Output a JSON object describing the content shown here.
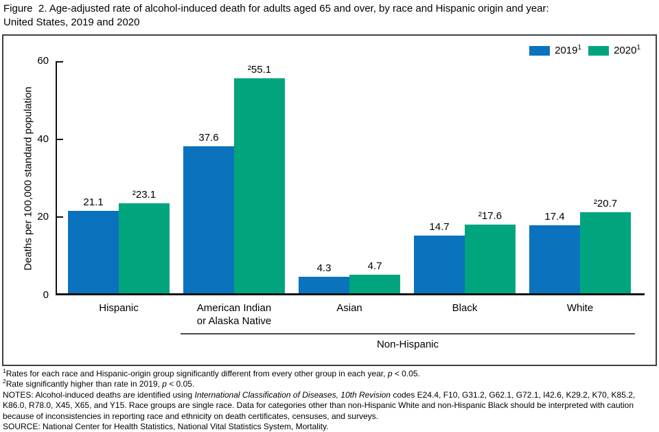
{
  "title": "Figure  2. Age-adjusted rate of alcohol-induced death for adults aged 65 and over, by race and Hispanic origin and year:\nUnited States, 2019 and 2020",
  "chart_data": {
    "type": "bar",
    "title": "Age-adjusted rate of alcohol-induced death for adults aged 65 and over, by race and Hispanic origin and year: United States, 2019 and 2020",
    "ylabel": "Deaths per 100,000 standard population",
    "xlabel": "",
    "ylim": [
      0,
      60
    ],
    "yticks": [
      0,
      20,
      40,
      60
    ],
    "grid": false,
    "legend_position": "top-right",
    "categories": [
      "Hispanic",
      "American Indian\nor Alaska Native",
      "Asian",
      "Black",
      "White"
    ],
    "series": [
      {
        "name": "2019",
        "name_sup": "1",
        "color": "#0B72BE",
        "values": [
          21.1,
          37.6,
          4.3,
          14.7,
          17.4
        ],
        "labels": [
          "21.1",
          "37.6",
          "4.3",
          "14.7",
          "17.4"
        ]
      },
      {
        "name": "2020",
        "name_sup": "1",
        "color": "#00A57E",
        "values": [
          23.1,
          55.1,
          4.7,
          17.6,
          20.7
        ],
        "labels": [
          "²23.1",
          "²55.1",
          "4.7",
          "²17.6",
          "²20.7"
        ]
      }
    ],
    "group_annotation": {
      "label": "Non-Hispanic",
      "covers": [
        "American Indian or Alaska Native",
        "Asian",
        "Black",
        "White"
      ]
    }
  },
  "footnotes": [
    {
      "segments": [
        {
          "t": "1",
          "style": "sup"
        },
        {
          "t": "Rates for each race and Hispanic-origin group significantly different from every other group in each year, "
        },
        {
          "t": "p",
          "style": "i"
        },
        {
          "t": " < 0.05."
        }
      ]
    },
    {
      "segments": [
        {
          "t": "2",
          "style": "sup"
        },
        {
          "t": "Rate significantly higher than rate in 2019, "
        },
        {
          "t": "p",
          "style": "i"
        },
        {
          "t": " < 0.05."
        }
      ]
    },
    {
      "segments": [
        {
          "t": "NOTES: Alcohol-induced deaths are identified using "
        },
        {
          "t": "International Classification of Diseases, 10th Revision",
          "style": "i"
        },
        {
          "t": " codes E24.4, F10, G31.2, G62.1, G72.1, I42.6, K29.2, K70, K85.2, K86.0, R78.0, X45, X65, and Y15. Race groups are single race. Data for categories other than non-Hispanic White and non-Hispanic Black should be interpreted with caution because of inconsistencies in reporting race and ethnicity on death certificates, censuses, and surveys."
        }
      ]
    },
    {
      "segments": [
        {
          "t": "SOURCE: National Center for Health Statistics, National Vital Statistics System, Mortality."
        }
      ]
    }
  ]
}
